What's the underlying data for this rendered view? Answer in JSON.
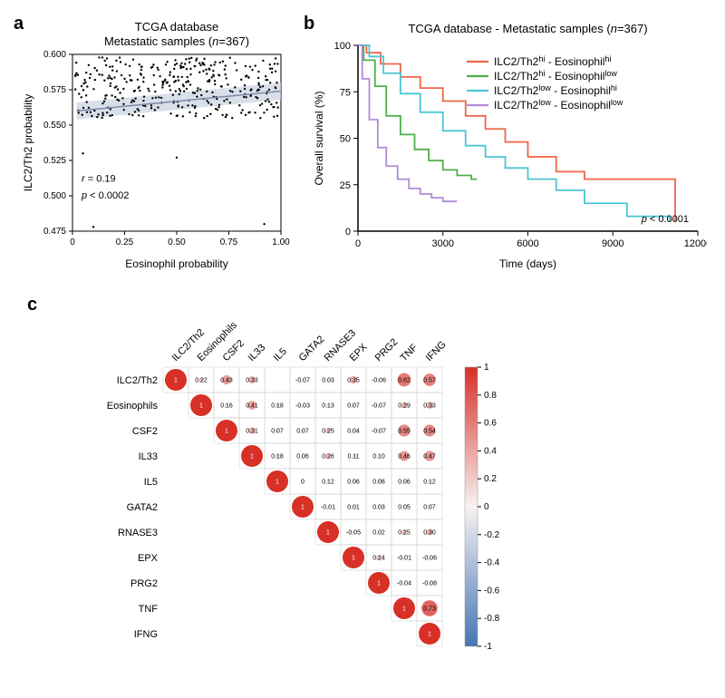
{
  "panel_a": {
    "label": "a",
    "title1": "TCGA database",
    "title2": "Metastatic samples (n=367)",
    "title_fontsize": 13,
    "xlabel": "Eosinophil probability",
    "ylabel": "ILC2/Th2 probability",
    "label_fontsize": 12,
    "xlim": [
      0,
      1.0
    ],
    "ylim": [
      0.475,
      0.6
    ],
    "xticks": [
      0,
      0.25,
      0.5,
      0.75,
      1.0
    ],
    "yticks": [
      0.475,
      0.5,
      0.525,
      0.55,
      0.575,
      0.6
    ],
    "xtick_labels": [
      "0",
      "0.25",
      "0.50",
      "0.75",
      "1.00"
    ],
    "ytick_labels": [
      "0.475",
      "0.500",
      "0.525",
      "0.550",
      "0.575",
      "0.600"
    ],
    "point_color": "#000000",
    "point_r": 1.2,
    "fit_line_color": "#7b8aa8",
    "fit_band_color": "#c9d1e0",
    "fit_x0": 0.02,
    "fit_y0": 0.56,
    "fit_x1": 1.0,
    "fit_y1": 0.574,
    "fit_band_halfwidth": 0.006,
    "r_text": "r = 0.19",
    "p_text": "p < 0.0002",
    "annot_fontsize": 11,
    "annot_font_style": "italic",
    "background_color": "#ffffff",
    "panel_border_color": "#000000",
    "n_random_points": 360,
    "rand_seed": 42,
    "band_y_lo": 0.555,
    "band_y_hi": 0.598,
    "outliers": [
      [
        0.05,
        0.53
      ],
      [
        0.1,
        0.478
      ],
      [
        0.5,
        0.527
      ],
      [
        0.92,
        0.48
      ]
    ]
  },
  "panel_b": {
    "label": "b",
    "title": "TCGA database - Metastatic samples (n=367)",
    "title_fontsize": 13,
    "xlabel": "Time (days)",
    "ylabel": "Overall survival (%)",
    "label_fontsize": 12,
    "xlim": [
      0,
      12000
    ],
    "ylim": [
      0,
      100
    ],
    "xticks": [
      0,
      3000,
      6000,
      9000,
      12000
    ],
    "yticks": [
      0,
      25,
      50,
      75,
      100
    ],
    "xtick_labels": [
      "0",
      "3000",
      "6000",
      "9000",
      "12000"
    ],
    "ytick_labels": [
      "0",
      "25",
      "50",
      "75",
      "100"
    ],
    "p_text": "p < 0.0001",
    "annot_fontsize": 11,
    "panel_border_color": "#000000",
    "line_width": 1.8,
    "series": [
      {
        "name": "ILC2/Th2hi - Eosinophilhi",
        "super": [
          "hi",
          "hi"
        ],
        "color": "#ef6548",
        "x": [
          0,
          300,
          800,
          1500,
          2200,
          3000,
          3800,
          4500,
          5200,
          6000,
          7000,
          8000,
          9500,
          11000,
          11200
        ],
        "y": [
          100,
          96,
          90,
          83,
          77,
          70,
          62,
          55,
          48,
          40,
          32,
          28,
          28,
          28,
          5
        ]
      },
      {
        "name": "ILC2/Th2hi - Eosinophillow",
        "super": [
          "hi",
          "low"
        ],
        "color": "#4daf4a",
        "x": [
          0,
          200,
          600,
          1000,
          1500,
          2000,
          2500,
          3000,
          3500,
          4000,
          4200
        ],
        "y": [
          100,
          92,
          78,
          62,
          52,
          44,
          38,
          33,
          30,
          28,
          28
        ]
      },
      {
        "name": "ILC2/Th2low - Eosinophilhi",
        "super": [
          "low",
          "hi"
        ],
        "color": "#4bc6d6",
        "x": [
          0,
          400,
          900,
          1500,
          2200,
          3000,
          3800,
          4500,
          5200,
          6000,
          7000,
          8000,
          9500,
          11000
        ],
        "y": [
          100,
          94,
          85,
          74,
          64,
          54,
          46,
          40,
          34,
          28,
          22,
          15,
          8,
          5
        ]
      },
      {
        "name": "ILC2/Th2low - Eosinophillow",
        "super": [
          "low",
          "low"
        ],
        "color": "#b18ad6",
        "x": [
          0,
          150,
          400,
          700,
          1000,
          1400,
          1800,
          2200,
          2600,
          3000,
          3500
        ],
        "y": [
          100,
          82,
          60,
          45,
          35,
          28,
          23,
          20,
          18,
          16,
          16
        ]
      }
    ]
  },
  "panel_c": {
    "label": "c",
    "labels": [
      "ILC2/Th2",
      "Eosinophils",
      "CSF2",
      "IL33",
      "IL5",
      "GATA2",
      "RNASE3",
      "EPX",
      "PRG2",
      "TNF",
      "IFNG"
    ],
    "label_fontsize": 11,
    "value_fontsize": 7,
    "cell_size": 28,
    "color_pos": "#d73027",
    "color_mid": "#f7f2f2",
    "color_neg": "#4575b4",
    "scale_ticks": [
      -1,
      -0.8,
      -0.6,
      -0.4,
      -0.2,
      0,
      0.2,
      0.4,
      0.6,
      0.8,
      1
    ],
    "matrix": [
      [
        1.0,
        0.22,
        0.43,
        0.33,
        null,
        -0.07,
        0.03,
        0.35,
        -0.06,
        0.62,
        0.57
      ],
      [
        null,
        1.0,
        0.16,
        0.41,
        0.18,
        -0.03,
        0.13,
        0.07,
        -0.07,
        0.29,
        0.33
      ],
      [
        null,
        null,
        1.0,
        0.31,
        0.07,
        0.07,
        0.25,
        0.04,
        -0.07,
        0.55,
        0.54
      ],
      [
        null,
        null,
        null,
        1.0,
        0.18,
        0.06,
        0.26,
        0.11,
        0.1,
        0.46,
        0.47
      ],
      [
        null,
        null,
        null,
        null,
        1.0,
        0.0,
        0.12,
        0.06,
        0.08,
        0.06,
        0.12
      ],
      [
        null,
        null,
        null,
        null,
        null,
        1.0,
        -0.01,
        0.01,
        0.03,
        0.05,
        0.07
      ],
      [
        null,
        null,
        null,
        null,
        null,
        null,
        1.0,
        -0.05,
        0.02,
        0.25,
        0.3
      ],
      [
        null,
        null,
        null,
        null,
        null,
        null,
        null,
        1.0,
        0.24,
        -0.01,
        -0.06
      ],
      [
        null,
        null,
        null,
        null,
        null,
        null,
        null,
        null,
        1.0,
        -0.04,
        -0.08
      ],
      [
        null,
        null,
        null,
        null,
        null,
        null,
        null,
        null,
        null,
        1.0,
        0.73
      ],
      [
        null,
        null,
        null,
        null,
        null,
        null,
        null,
        null,
        null,
        null,
        1.0
      ]
    ]
  }
}
